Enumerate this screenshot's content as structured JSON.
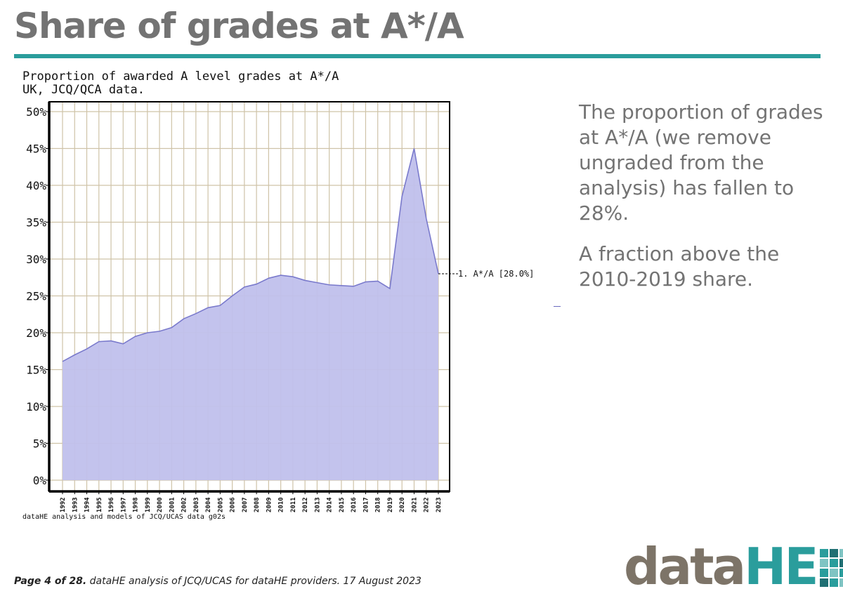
{
  "page": {
    "title": "Share of grades at A*/A",
    "side_text": [
      "The proportion of grades at A*/A (we remove ungraded from the analysis) has fallen to 28%.",
      "A fraction above the 2010-2019 share."
    ],
    "footer_bold": "Page 4 of 28.",
    "footer_rest": " dataHE analysis of JCQ/UCAS for dataHE providers. 17 August 2023",
    "logo_data": "data",
    "logo_he": "HE"
  },
  "colors": {
    "accent": "#2a9d9c",
    "area_fill": "#c0c0ec",
    "area_line": "#7a7acc",
    "grid": "#cfc3a8",
    "title_grey": "#737373",
    "logo_squares": [
      "#2a9d9c",
      "#1f6f73",
      "#7fc4c3",
      "#2a9d9c",
      "#7fc4c3",
      "#2a9d9c",
      "#1f6f73",
      "#2a9d9c",
      "#2a9d9c",
      "#7fc4c3",
      "#2a9d9c",
      "#1f6f73",
      "#1f6f73",
      "#2a9d9c",
      "#7fc4c3",
      "#2a9d9c"
    ]
  },
  "chart_data": {
    "type": "area",
    "title": "Proportion of awarded A level grades at A*/A",
    "subtitle": "UK, JCQ/QCA data.",
    "source": "dataHE analysis and models of JCQ/UCAS data g02s",
    "xlabel": "",
    "ylabel": "",
    "x": [
      "1992",
      "1993",
      "1994",
      "1995",
      "1996",
      "1997",
      "1998",
      "1999",
      "2000",
      "2001",
      "2002",
      "2003",
      "2004",
      "2005",
      "2006",
      "2007",
      "2008",
      "2009",
      "2010",
      "2011",
      "2012",
      "2013",
      "2014",
      "2015",
      "2016",
      "2017",
      "2018",
      "2019",
      "2020",
      "2021",
      "2022",
      "2023"
    ],
    "series": [
      {
        "name": "A*/A",
        "values": [
          16.1,
          17.0,
          17.8,
          18.8,
          18.9,
          18.5,
          19.5,
          20.0,
          20.2,
          20.7,
          21.9,
          22.6,
          23.4,
          23.7,
          25.0,
          26.2,
          26.6,
          27.4,
          27.8,
          27.6,
          27.1,
          26.8,
          26.5,
          26.4,
          26.3,
          26.9,
          27.0,
          26.0,
          38.5,
          45.0,
          35.5,
          28.0
        ],
        "label": "1. A*/A [28.0%]"
      }
    ],
    "ylim": [
      0,
      52
    ],
    "yticks": [
      0,
      5,
      10,
      15,
      20,
      25,
      30,
      35,
      40,
      45,
      50
    ],
    "ytick_labels": [
      "0%",
      "5%",
      "10%",
      "15%",
      "20%",
      "25%",
      "30%",
      "35%",
      "40%",
      "45%",
      "50%"
    ],
    "grid": true,
    "legend": "right-end label"
  }
}
